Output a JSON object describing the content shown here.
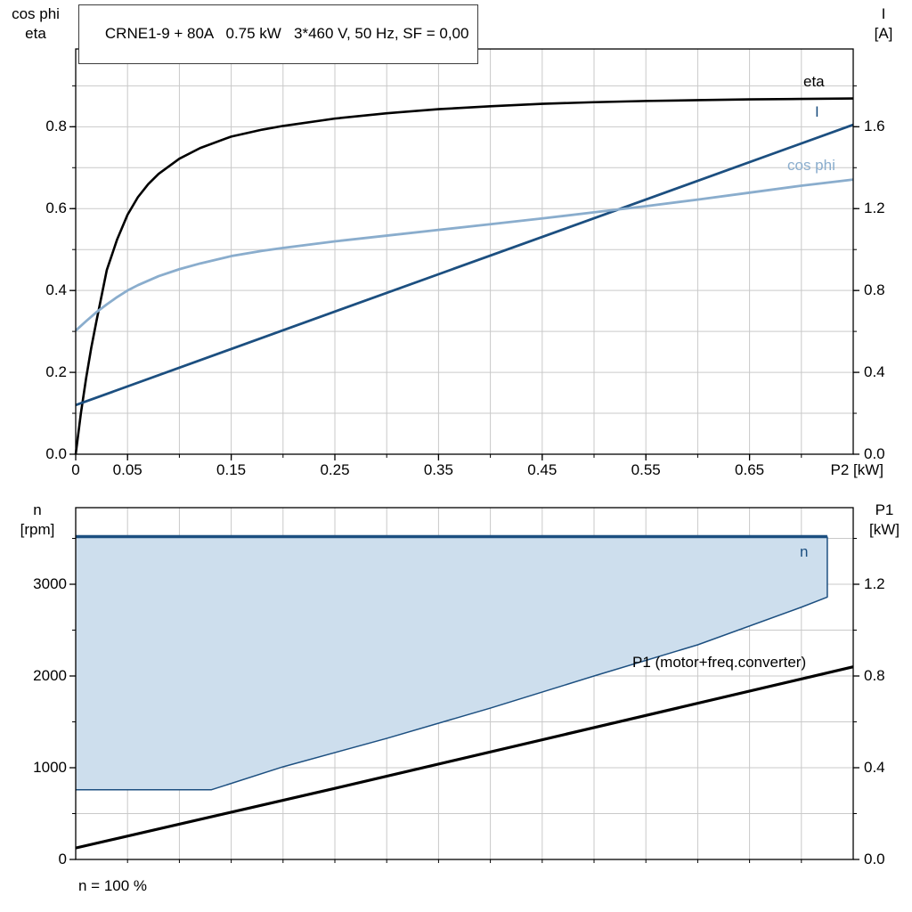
{
  "colors": {
    "black": "#000000",
    "dark_blue": "#1c4f80",
    "light_blue": "#8aadcd",
    "band_fill": "#cddeed",
    "grid": "#c9c9c9",
    "frame": "#000000",
    "background": "#ffffff"
  },
  "chart_data": [
    {
      "id": "top",
      "type": "line",
      "title": "CRNE1-9 + 80A   0.75 kW   3*460 V, 50 Hz, SF = 0,00",
      "legend_position": "labels-at-line-ends",
      "grid": true,
      "x_axis": {
        "label": "P2 [kW]",
        "min": 0,
        "max": 0.75,
        "grid_step": 0.05,
        "ticks": [
          0,
          0.05,
          0.15,
          0.25,
          0.35,
          0.45,
          0.55,
          0.65
        ],
        "tick_labels": [
          "0",
          "0.05",
          "0.15",
          "0.25",
          "0.35",
          "0.45",
          "0.55",
          "0.65"
        ]
      },
      "y_left": {
        "title_lines": [
          "cos phi",
          "eta"
        ],
        "min": 0,
        "max": 0.99,
        "grid_step": 0.1,
        "ticks": [
          0,
          0.2,
          0.4,
          0.6,
          0.8
        ],
        "tick_labels": [
          "0.0",
          "0.2",
          "0.4",
          "0.6",
          "0.8"
        ]
      },
      "y_right": {
        "title_lines": [
          "I",
          "[A]"
        ],
        "min": 0,
        "max": 1.98,
        "ticks": [
          0,
          0.4,
          0.8,
          1.2,
          1.6
        ],
        "tick_labels": [
          "0.0",
          "0.4",
          "0.8",
          "1.2",
          "1.6"
        ]
      },
      "series": [
        {
          "key": "eta",
          "name": "eta",
          "axis": "left",
          "color_key": "black",
          "width": 2.6,
          "points": [
            [
              0,
              0
            ],
            [
              0.005,
              0.1
            ],
            [
              0.01,
              0.185
            ],
            [
              0.015,
              0.26
            ],
            [
              0.02,
              0.325
            ],
            [
              0.03,
              0.45
            ],
            [
              0.04,
              0.525
            ],
            [
              0.05,
              0.585
            ],
            [
              0.06,
              0.628
            ],
            [
              0.07,
              0.66
            ],
            [
              0.08,
              0.685
            ],
            [
              0.1,
              0.722
            ],
            [
              0.12,
              0.748
            ],
            [
              0.15,
              0.776
            ],
            [
              0.18,
              0.793
            ],
            [
              0.2,
              0.802
            ],
            [
              0.25,
              0.82
            ],
            [
              0.3,
              0.833
            ],
            [
              0.35,
              0.843
            ],
            [
              0.4,
              0.85
            ],
            [
              0.45,
              0.856
            ],
            [
              0.5,
              0.86
            ],
            [
              0.55,
              0.863
            ],
            [
              0.6,
              0.865
            ],
            [
              0.65,
              0.867
            ],
            [
              0.7,
              0.868
            ],
            [
              0.75,
              0.869
            ]
          ]
        },
        {
          "key": "current",
          "name": "I",
          "axis": "right",
          "color_key": "dark_blue",
          "width": 2.8,
          "points": [
            [
              0,
              0.24
            ],
            [
              0.25,
              0.697
            ],
            [
              0.5,
              1.153
            ],
            [
              0.75,
              1.61
            ]
          ]
        },
        {
          "key": "cos-phi",
          "name": "cos phi",
          "axis": "left",
          "color_key": "light_blue",
          "width": 2.8,
          "points": [
            [
              0,
              0.302
            ],
            [
              0.01,
              0.325
            ],
            [
              0.02,
              0.347
            ],
            [
              0.03,
              0.366
            ],
            [
              0.04,
              0.384
            ],
            [
              0.05,
              0.4
            ],
            [
              0.06,
              0.413
            ],
            [
              0.08,
              0.435
            ],
            [
              0.1,
              0.452
            ],
            [
              0.12,
              0.466
            ],
            [
              0.15,
              0.484
            ],
            [
              0.18,
              0.497
            ],
            [
              0.2,
              0.504
            ],
            [
              0.25,
              0.52
            ],
            [
              0.3,
              0.534
            ],
            [
              0.35,
              0.548
            ],
            [
              0.4,
              0.562
            ],
            [
              0.45,
              0.576
            ],
            [
              0.5,
              0.591
            ],
            [
              0.55,
              0.606
            ],
            [
              0.6,
              0.622
            ],
            [
              0.65,
              0.639
            ],
            [
              0.7,
              0.656
            ],
            [
              0.75,
              0.671
            ]
          ]
        }
      ]
    },
    {
      "id": "bottom",
      "type": "line",
      "grid": true,
      "x_axis": {
        "label": "",
        "min": 0,
        "max": 0.75,
        "grid_step": 0.05,
        "ticks": [],
        "tick_labels": []
      },
      "y_left": {
        "title_lines": [
          "n",
          "[rpm]"
        ],
        "min": 0,
        "max": 3835,
        "grid_step": 500,
        "ticks": [
          0,
          1000,
          2000,
          3000
        ],
        "tick_labels": [
          "0",
          "1000",
          "2000",
          "3000"
        ]
      },
      "y_right": {
        "title_lines": [
          "P1",
          "[kW]"
        ],
        "min": 0,
        "max": 1.534,
        "ticks": [
          0,
          0.4,
          0.8,
          1.2
        ],
        "tick_labels": [
          "0.0",
          "0.4",
          "0.8",
          "1.2"
        ]
      },
      "band": {
        "key": "speed-range",
        "name": "n",
        "axis": "left",
        "line_color_key": "dark_blue",
        "fill_color_key": "band_fill",
        "upper": [
          [
            0,
            3520
          ],
          [
            0.725,
            3520
          ]
        ],
        "lower": [
          [
            0,
            760
          ],
          [
            0.131,
            760
          ],
          [
            0.2,
            1010
          ],
          [
            0.3,
            1320
          ],
          [
            0.4,
            1650
          ],
          [
            0.5,
            2000
          ],
          [
            0.6,
            2340
          ],
          [
            0.7,
            2750
          ],
          [
            0.725,
            2860
          ]
        ]
      },
      "series": [
        {
          "key": "p1",
          "name": "P1 (motor+freq.converter)",
          "axis": "right",
          "color_key": "black",
          "width": 3.2,
          "points": [
            [
              0,
              0.05
            ],
            [
              0.25,
              0.31
            ],
            [
              0.5,
              0.575
            ],
            [
              0.75,
              0.84
            ]
          ]
        }
      ],
      "footnote": "n = 100 %"
    }
  ]
}
